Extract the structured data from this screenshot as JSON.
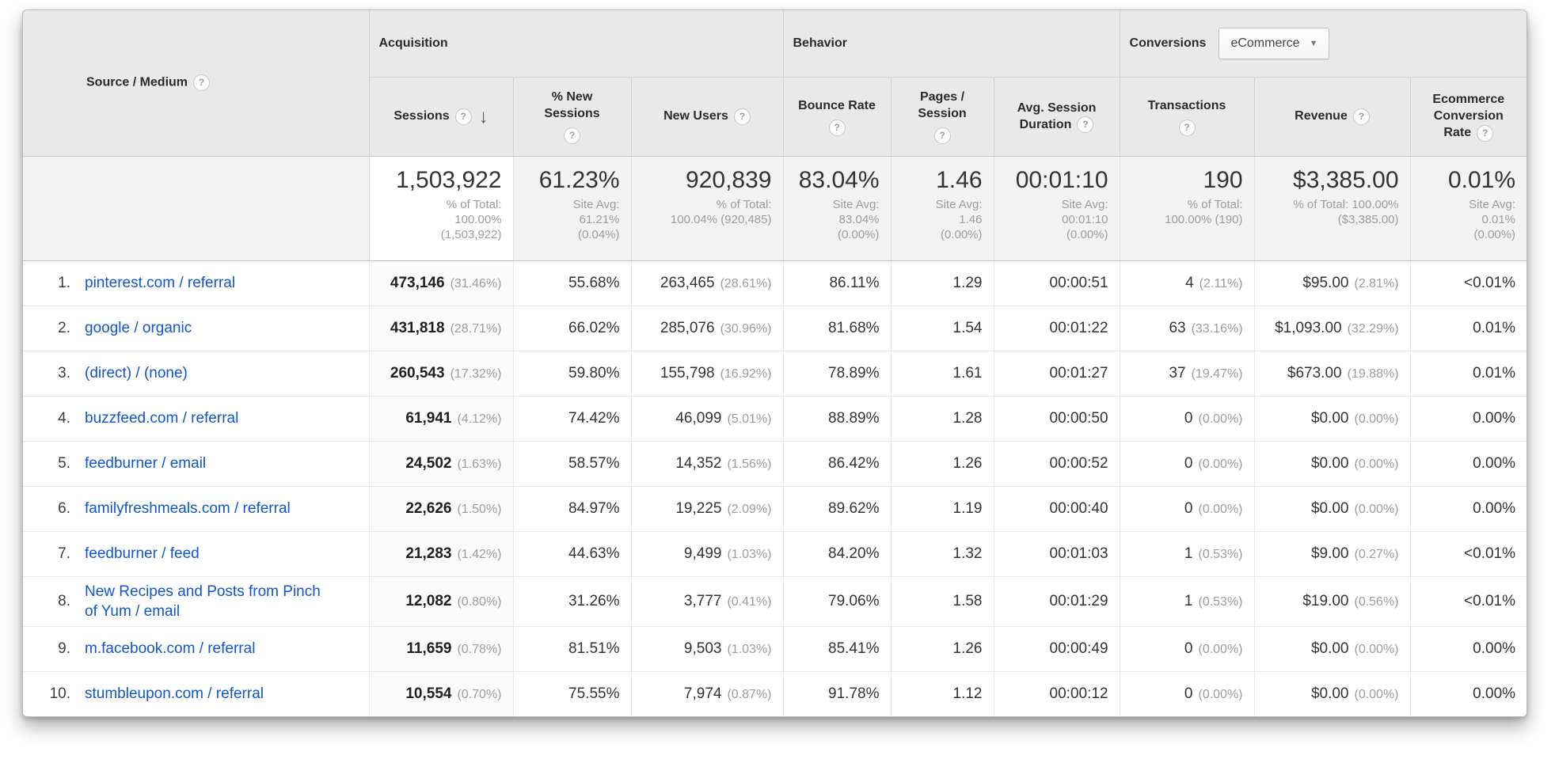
{
  "title": "Source / Medium acquisition report table",
  "icons": {
    "help": "?",
    "sort_desc": "↓",
    "dropdown_caret": "▼"
  },
  "colors": {
    "link": "#1155cc",
    "header_bg": "#e9e9e9",
    "summary_bg": "#f2f2f2",
    "outer_border": "#b9b9b9",
    "text": "#333333",
    "muted": "#9c9c9c"
  },
  "table": {
    "row_dimension": {
      "label": "Source / Medium"
    },
    "groups": {
      "acquisition": {
        "label": "Acquisition"
      },
      "behavior": {
        "label": "Behavior"
      },
      "conversions": {
        "label": "Conversions",
        "dropdown_value": "eCommerce"
      }
    },
    "columns": [
      {
        "label": "Sessions",
        "sorted": "descending"
      },
      {
        "label": "% New Sessions"
      },
      {
        "label": "New Users"
      },
      {
        "label": "Bounce Rate"
      },
      {
        "label": "Pages / Session"
      },
      {
        "label": "Avg. Session Duration"
      },
      {
        "label": "Transactions"
      },
      {
        "label": "Revenue"
      },
      {
        "label": "Ecommerce Conversion Rate"
      }
    ],
    "summary": {
      "metrics": [
        {
          "value": "1,503,922",
          "lines": [
            "% of Total:",
            "100.00%",
            "(1,503,922)"
          ]
        },
        {
          "value": "61.23%",
          "lines": [
            "Site Avg:",
            "61.21%",
            "(0.04%)"
          ]
        },
        {
          "value": "920,839",
          "lines": [
            "% of Total:",
            "100.04% (920,485)"
          ]
        },
        {
          "value": "83.04%",
          "lines": [
            "Site Avg:",
            "83.04%",
            "(0.00%)"
          ]
        },
        {
          "value": "1.46",
          "lines": [
            "Site Avg:",
            "1.46",
            "(0.00%)"
          ]
        },
        {
          "value": "00:01:10",
          "lines": [
            "Site Avg:",
            "00:01:10",
            "(0.00%)"
          ]
        },
        {
          "value": "190",
          "lines": [
            "% of Total:",
            "100.00% (190)"
          ]
        },
        {
          "value": "$3,385.00",
          "lines": [
            "% of Total: 100.00%",
            "($3,385.00)"
          ]
        },
        {
          "value": "0.01%",
          "lines": [
            "Site Avg:",
            "0.01%",
            "(0.00%)"
          ]
        }
      ]
    },
    "rows": [
      {
        "rank": "1.",
        "source": "pinterest.com / referral",
        "sessions": "473,146",
        "sessions_pct": "(31.46%)",
        "new_sessions": "55.68%",
        "new_users": "263,465",
        "new_users_pct": "(28.61%)",
        "bounce": "86.11%",
        "pages": "1.29",
        "duration": "00:00:51",
        "transactions": "4",
        "transactions_pct": "(2.11%)",
        "revenue": "$95.00",
        "revenue_pct": "(2.81%)",
        "ecom": "<0.01%"
      },
      {
        "rank": "2.",
        "source": "google / organic",
        "sessions": "431,818",
        "sessions_pct": "(28.71%)",
        "new_sessions": "66.02%",
        "new_users": "285,076",
        "new_users_pct": "(30.96%)",
        "bounce": "81.68%",
        "pages": "1.54",
        "duration": "00:01:22",
        "transactions": "63",
        "transactions_pct": "(33.16%)",
        "revenue": "$1,093.00",
        "revenue_pct": "(32.29%)",
        "ecom": "0.01%"
      },
      {
        "rank": "3.",
        "source": "(direct) / (none)",
        "sessions": "260,543",
        "sessions_pct": "(17.32%)",
        "new_sessions": "59.80%",
        "new_users": "155,798",
        "new_users_pct": "(16.92%)",
        "bounce": "78.89%",
        "pages": "1.61",
        "duration": "00:01:27",
        "transactions": "37",
        "transactions_pct": "(19.47%)",
        "revenue": "$673.00",
        "revenue_pct": "(19.88%)",
        "ecom": "0.01%"
      },
      {
        "rank": "4.",
        "source": "buzzfeed.com / referral",
        "sessions": "61,941",
        "sessions_pct": "(4.12%)",
        "new_sessions": "74.42%",
        "new_users": "46,099",
        "new_users_pct": "(5.01%)",
        "bounce": "88.89%",
        "pages": "1.28",
        "duration": "00:00:50",
        "transactions": "0",
        "transactions_pct": "(0.00%)",
        "revenue": "$0.00",
        "revenue_pct": "(0.00%)",
        "ecom": "0.00%"
      },
      {
        "rank": "5.",
        "source": "feedburner / email",
        "sessions": "24,502",
        "sessions_pct": "(1.63%)",
        "new_sessions": "58.57%",
        "new_users": "14,352",
        "new_users_pct": "(1.56%)",
        "bounce": "86.42%",
        "pages": "1.26",
        "duration": "00:00:52",
        "transactions": "0",
        "transactions_pct": "(0.00%)",
        "revenue": "$0.00",
        "revenue_pct": "(0.00%)",
        "ecom": "0.00%"
      },
      {
        "rank": "6.",
        "source": "familyfreshmeals.com / referral",
        "sessions": "22,626",
        "sessions_pct": "(1.50%)",
        "new_sessions": "84.97%",
        "new_users": "19,225",
        "new_users_pct": "(2.09%)",
        "bounce": "89.62%",
        "pages": "1.19",
        "duration": "00:00:40",
        "transactions": "0",
        "transactions_pct": "(0.00%)",
        "revenue": "$0.00",
        "revenue_pct": "(0.00%)",
        "ecom": "0.00%"
      },
      {
        "rank": "7.",
        "source": "feedburner / feed",
        "sessions": "21,283",
        "sessions_pct": "(1.42%)",
        "new_sessions": "44.63%",
        "new_users": "9,499",
        "new_users_pct": "(1.03%)",
        "bounce": "84.20%",
        "pages": "1.32",
        "duration": "00:01:03",
        "transactions": "1",
        "transactions_pct": "(0.53%)",
        "revenue": "$9.00",
        "revenue_pct": "(0.27%)",
        "ecom": "<0.01%"
      },
      {
        "rank": "8.",
        "source": "New Recipes and Posts from Pinch of Yum / email",
        "sessions": "12,082",
        "sessions_pct": "(0.80%)",
        "new_sessions": "31.26%",
        "new_users": "3,777",
        "new_users_pct": "(0.41%)",
        "bounce": "79.06%",
        "pages": "1.58",
        "duration": "00:01:29",
        "transactions": "1",
        "transactions_pct": "(0.53%)",
        "revenue": "$19.00",
        "revenue_pct": "(0.56%)",
        "ecom": "<0.01%"
      },
      {
        "rank": "9.",
        "source": "m.facebook.com / referral",
        "sessions": "11,659",
        "sessions_pct": "(0.78%)",
        "new_sessions": "81.51%",
        "new_users": "9,503",
        "new_users_pct": "(1.03%)",
        "bounce": "85.41%",
        "pages": "1.26",
        "duration": "00:00:49",
        "transactions": "0",
        "transactions_pct": "(0.00%)",
        "revenue": "$0.00",
        "revenue_pct": "(0.00%)",
        "ecom": "0.00%"
      },
      {
        "rank": "10.",
        "source": "stumbleupon.com / referral",
        "sessions": "10,554",
        "sessions_pct": "(0.70%)",
        "new_sessions": "75.55%",
        "new_users": "7,974",
        "new_users_pct": "(0.87%)",
        "bounce": "91.78%",
        "pages": "1.12",
        "duration": "00:00:12",
        "transactions": "0",
        "transactions_pct": "(0.00%)",
        "revenue": "$0.00",
        "revenue_pct": "(0.00%)",
        "ecom": "0.00%"
      }
    ]
  }
}
